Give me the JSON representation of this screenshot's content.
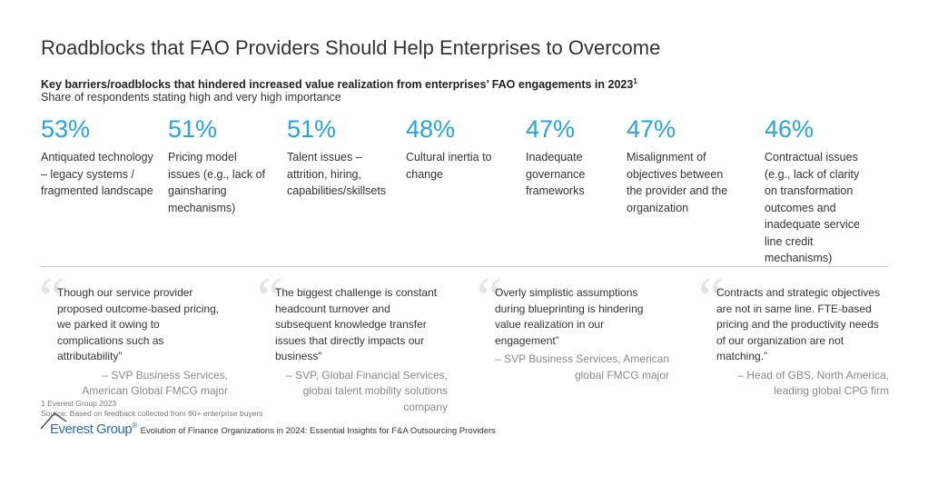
{
  "title": "Roadblocks that FAO Providers Should Help Enterprises to Overcome",
  "subtitle": "Key barriers/roadblocks that hindered increased value realization from enterprises’ FAO engagements in 2023",
  "subtitle_footnote_marker": "1",
  "subtitle2": "Share of respondents stating high and very high importance",
  "accent_color": "#29a3dc",
  "stats": [
    {
      "value": "53%",
      "label": "Antiquated technology – legacy systems / fragmented landscape"
    },
    {
      "value": "51%",
      "label": "Pricing model issues (e.g., lack of gainsharing mechanisms)"
    },
    {
      "value": "51%",
      "label": "Talent issues – attrition, hiring, capabilities/skillsets"
    },
    {
      "value": "48%",
      "label": "Cultural inertia to change"
    },
    {
      "value": "47%",
      "label": "Inadequate governance frameworks"
    },
    {
      "value": "47%",
      "label": "Misalignment of objectives between the provider and the organization"
    },
    {
      "value": "46%",
      "label": "Contractual issues (e.g., lack of clarity on transformation outcomes and inadequate service line credit mechanisms)"
    }
  ],
  "quotes": [
    {
      "text": "Though our service provider proposed outcome-based pricing, we parked it owing to complications such as attributability”",
      "attribution": "– SVP Business Services, American Global FMCG major"
    },
    {
      "text": "The biggest challenge is constant headcount turnover and subsequent knowledge transfer issues that directly impacts our business”",
      "attribution": "– SVP, Global Financial Services, global talent mobility solutions company"
    },
    {
      "text": "Overly simplistic assumptions during blueprinting is hindering value realization in our engagement”",
      "attribution": "– SVP Business Services, American global FMCG major"
    },
    {
      "text": "Contracts and strategic objectives are not in same line. FTE-based pricing and the productivity needs of our organization are not matching.”",
      "attribution": "– Head of GBS, North America, leading global CPG firm"
    }
  ],
  "footnote1": "1 Everest Group 2023",
  "footnote2": "Source: Based on feedback collected from 60+ enterprise buyers",
  "logo": {
    "text": "Everest Group",
    "mark": "®"
  },
  "report_title": "Evolution of Finance Organizations in 2024: Essential Insights for F&A Outsourcing Providers"
}
